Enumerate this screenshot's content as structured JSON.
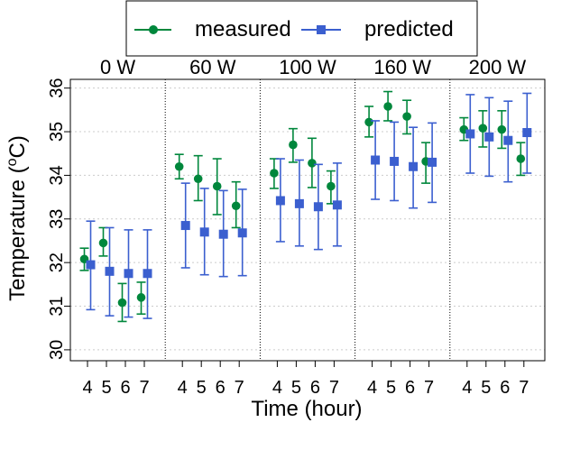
{
  "chart_data": {
    "type": "scatter",
    "title": "",
    "xlabel": "Time (hour)",
    "ylabel_prefix": "Temperature (",
    "ylabel_sup": "o",
    "ylabel_suffix": "C)",
    "ylim": [
      29.75,
      36.2
    ],
    "yticks": [
      30,
      31,
      32,
      33,
      34,
      35,
      36
    ],
    "x_ticks": [
      "4",
      "5",
      "6",
      "7"
    ],
    "grid": true,
    "legend_position": "top-center",
    "panels": [
      "0 W",
      "60 W",
      "100 W",
      "160 W",
      "200 W"
    ],
    "series": [
      {
        "name": "measured",
        "color": "#00873c",
        "marker": "circle",
        "values": [
          [
            32.08,
            32.45,
            31.08,
            31.2
          ],
          [
            34.2,
            33.92,
            33.75,
            33.3
          ],
          [
            34.05,
            34.7,
            34.28,
            33.75
          ],
          [
            35.22,
            35.58,
            35.35,
            34.32
          ],
          [
            35.05,
            35.08,
            35.05,
            34.38
          ]
        ],
        "errors": [
          [
            [
              31.82,
              32.33
            ],
            [
              32.15,
              32.8
            ],
            [
              30.65,
              31.52
            ],
            [
              30.82,
              31.55
            ]
          ],
          [
            [
              33.92,
              34.48
            ],
            [
              33.42,
              34.45
            ],
            [
              33.1,
              34.38
            ],
            [
              32.8,
              33.85
            ]
          ],
          [
            [
              33.7,
              34.38
            ],
            [
              34.3,
              35.07
            ],
            [
              33.72,
              34.85
            ],
            [
              33.35,
              34.1
            ]
          ],
          [
            [
              34.88,
              35.58
            ],
            [
              35.25,
              35.92
            ],
            [
              34.95,
              35.72
            ],
            [
              33.82,
              34.75
            ]
          ],
          [
            [
              34.8,
              35.32
            ],
            [
              34.65,
              35.48
            ],
            [
              34.62,
              35.48
            ],
            [
              34.0,
              34.75
            ]
          ]
        ]
      },
      {
        "name": "predicted",
        "color": "#3b5fcf",
        "marker": "square",
        "values": [
          [
            31.95,
            31.8,
            31.75,
            31.75
          ],
          [
            32.85,
            32.7,
            32.65,
            32.68
          ],
          [
            33.42,
            33.35,
            33.28,
            33.32
          ],
          [
            34.35,
            34.32,
            34.2,
            34.3
          ],
          [
            34.95,
            34.88,
            34.8,
            34.98
          ]
        ],
        "errors": [
          [
            [
              30.92,
              32.95
            ],
            [
              30.78,
              32.8
            ],
            [
              30.75,
              32.75
            ],
            [
              30.72,
              32.75
            ]
          ],
          [
            [
              31.88,
              33.82
            ],
            [
              31.72,
              33.7
            ],
            [
              31.68,
              33.65
            ],
            [
              31.7,
              33.68
            ]
          ],
          [
            [
              32.48,
              34.38
            ],
            [
              32.38,
              34.35
            ],
            [
              32.3,
              34.25
            ],
            [
              32.38,
              34.28
            ]
          ],
          [
            [
              33.45,
              35.25
            ],
            [
              33.42,
              35.22
            ],
            [
              33.25,
              35.1
            ],
            [
              33.38,
              35.2
            ]
          ],
          [
            [
              34.05,
              35.85
            ],
            [
              33.98,
              35.78
            ],
            [
              33.85,
              35.7
            ],
            [
              34.05,
              35.88
            ]
          ]
        ]
      }
    ]
  }
}
